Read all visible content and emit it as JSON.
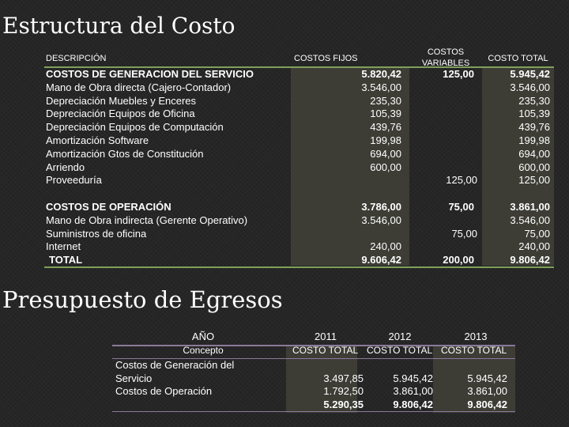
{
  "title1": "Estructura del Costo",
  "title2": "Presupuesto de Egresos",
  "table1": {
    "headers": {
      "desc": "DESCRIPCIÓN",
      "fijos": "COSTOS FIJOS",
      "variables_1": "COSTOS",
      "variables_2": "VARIABLES",
      "total": "COSTO TOTAL"
    },
    "group1": {
      "rows": [
        {
          "desc": "COSTOS DE GENERACION DEL SERVICIO",
          "fijos": "5.820,42",
          "variables": "125,00",
          "total": "5.945,42"
        },
        {
          "desc": "Mano de Obra directa (Cajero-Contador)",
          "fijos": "3.546,00",
          "variables": "",
          "total": "3.546,00"
        },
        {
          "desc": "Depreciación Muebles y Enceres",
          "fijos": "235,30",
          "variables": "",
          "total": "235,30"
        },
        {
          "desc": "Depreciación Equipos de Oficina",
          "fijos": "105,39",
          "variables": "",
          "total": "105,39"
        },
        {
          "desc": "Depreciación Equipos de Computación",
          "fijos": "439,76",
          "variables": "",
          "total": "439,76"
        },
        {
          "desc": "Amortización Software",
          "fijos": "199,98",
          "variables": "",
          "total": "199,98"
        },
        {
          "desc": "Amortización Gtos de Constitución",
          "fijos": "694,00",
          "variables": "",
          "total": "694,00"
        },
        {
          "desc": "Arriendo",
          "fijos": "600,00",
          "variables": "",
          "total": "600,00"
        },
        {
          "desc": "Proveeduría",
          "fijos": "",
          "variables": "125,00",
          "total": "125,00"
        }
      ]
    },
    "group2": {
      "rows": [
        {
          "desc": "COSTOS DE OPERACIÓN",
          "fijos": "3.786,00",
          "variables": "75,00",
          "total": "3.861,00"
        },
        {
          "desc": "Mano de Obra indirecta (Gerente Operativo)",
          "fijos": "3.546,00",
          "variables": "",
          "total": "3.546,00"
        },
        {
          "desc": "Suministros de oficina",
          "fijos": "",
          "variables": "75,00",
          "total": "75,00"
        },
        {
          "desc": "Internet",
          "fijos": "240,00",
          "variables": "",
          "total": "240,00"
        },
        {
          "desc": "TOTAL",
          "fijos": "9.606,42",
          "variables": "200,00",
          "total": "9.806,42"
        }
      ]
    }
  },
  "table2": {
    "year_label": "AÑO",
    "concept_label": "Concepto",
    "years": [
      "2011",
      "2012",
      "2013"
    ],
    "col_header": [
      "COSTO TOTAL",
      "COSTO TOTAL",
      "COSTO TOTAL"
    ],
    "rows": [
      {
        "concept": "Costos de Generación del",
        "values": [
          "",
          "",
          ""
        ]
      },
      {
        "concept": "Servicio",
        "values": [
          "3.497,85",
          "5.945,42",
          "5.945,42"
        ]
      },
      {
        "concept": "Costos de Operación",
        "values": [
          "1.792,50",
          "3.861,00",
          "3.861,00"
        ]
      },
      {
        "concept": "",
        "values": [
          "5.290,35",
          "9.806,42",
          "9.806,42"
        ]
      }
    ]
  },
  "colors": {
    "accent_line": "#7fa05a",
    "shade": "#3d3d36",
    "background": "#262626"
  }
}
